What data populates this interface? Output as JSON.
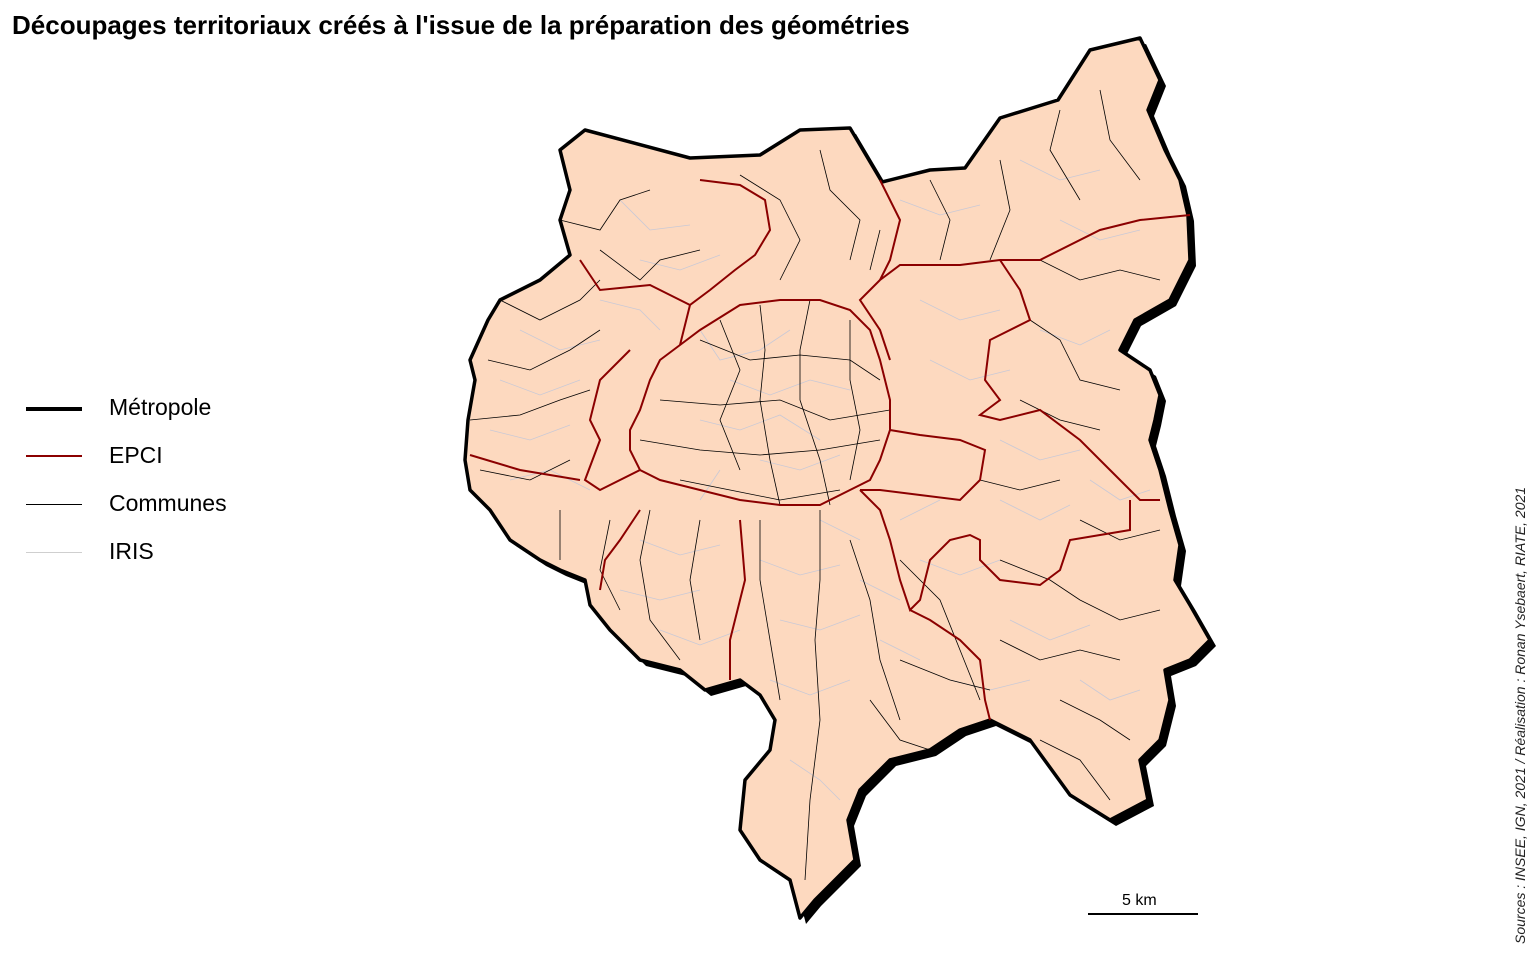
{
  "title": "Découpages territoriaux créés à l'issue de la préparation des géométries",
  "legend": {
    "items": [
      {
        "label": "Métropole",
        "color": "#000000"
      },
      {
        "label": "EPCI",
        "color": "#8b0000"
      },
      {
        "label": "Communes",
        "color": "#000000"
      },
      {
        "label": "IRIS",
        "color": "#cfcfcf"
      }
    ]
  },
  "map": {
    "fill_color": "#fdd9bf",
    "shadow_color": "#000000"
  },
  "scale": {
    "label": "5 km"
  },
  "source": "Sources : INSEE, IGN, 2021 / Réalisation : Ronan Ysebaert, RIATE, 2021"
}
